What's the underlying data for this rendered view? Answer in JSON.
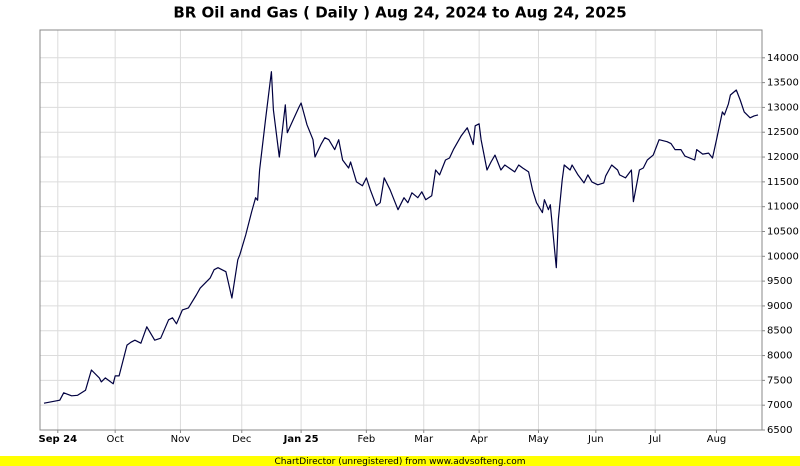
{
  "chart_data": {
    "type": "line",
    "title": "BR Oil and Gas ( Daily ) Aug 24, 2024 to Aug 24, 2025",
    "footer": "ChartDirector (unregistered) from www.advsofteng.com",
    "grid": true,
    "xlim": [
      "2024-08-24",
      "2025-08-24"
    ],
    "ylim": [
      6500,
      14560
    ],
    "yticks": [
      6500,
      7000,
      7500,
      8000,
      8500,
      9000,
      9500,
      10000,
      10500,
      11000,
      11500,
      12000,
      12500,
      13000,
      13500,
      14000
    ],
    "xticks": [
      {
        "value": "2024-09-02",
        "label": "Sep 24"
      },
      {
        "value": "2024-10-01",
        "label": "Oct"
      },
      {
        "value": "2024-11-03",
        "label": "Nov"
      },
      {
        "value": "2024-12-04",
        "label": "Dec"
      },
      {
        "value": "2025-01-03",
        "label": "Jan 25"
      },
      {
        "value": "2025-02-05",
        "label": "Feb"
      },
      {
        "value": "2025-03-06",
        "label": "Mar"
      },
      {
        "value": "2025-04-03",
        "label": "Apr"
      },
      {
        "value": "2025-05-03",
        "label": "May"
      },
      {
        "value": "2025-06-01",
        "label": "Jun"
      },
      {
        "value": "2025-07-01",
        "label": "Jul"
      },
      {
        "value": "2025-08-01",
        "label": "Aug"
      }
    ],
    "x": [
      "2024-08-26",
      "2024-09-03",
      "2024-09-05",
      "2024-09-09",
      "2024-09-12",
      "2024-09-16",
      "2024-09-19",
      "2024-09-23",
      "2024-09-24",
      "2024-09-26",
      "2024-09-30",
      "2024-10-01",
      "2024-10-03",
      "2024-10-07",
      "2024-10-09",
      "2024-10-11",
      "2024-10-14",
      "2024-10-17",
      "2024-10-21",
      "2024-10-24",
      "2024-10-28",
      "2024-10-30",
      "2024-11-01",
      "2024-11-04",
      "2024-11-07",
      "2024-11-11",
      "2024-11-13",
      "2024-11-18",
      "2024-11-20",
      "2024-11-22",
      "2024-11-26",
      "2024-11-29",
      "2024-12-02",
      "2024-12-03",
      "2024-12-06",
      "2024-12-09",
      "2024-12-11",
      "2024-12-12",
      "2024-12-13",
      "2024-12-16",
      "2024-12-19",
      "2024-12-20",
      "2024-12-23",
      "2024-12-26",
      "2024-12-27",
      "2024-12-30",
      "2025-01-02",
      "2025-01-03",
      "2025-01-06",
      "2025-01-09",
      "2025-01-10",
      "2025-01-13",
      "2025-01-15",
      "2025-01-17",
      "2025-01-20",
      "2025-01-22",
      "2025-01-24",
      "2025-01-27",
      "2025-01-28",
      "2025-01-31",
      "2025-02-03",
      "2025-02-05",
      "2025-02-07",
      "2025-02-10",
      "2025-02-12",
      "2025-02-14",
      "2025-02-17",
      "2025-02-21",
      "2025-02-24",
      "2025-02-26",
      "2025-02-28",
      "2025-03-03",
      "2025-03-05",
      "2025-03-07",
      "2025-03-10",
      "2025-03-12",
      "2025-03-14",
      "2025-03-17",
      "2025-03-19",
      "2025-03-21",
      "2025-03-25",
      "2025-03-28",
      "2025-03-31",
      "2025-04-01",
      "2025-04-03",
      "2025-04-04",
      "2025-04-07",
      "2025-04-09",
      "2025-04-11",
      "2025-04-14",
      "2025-04-16",
      "2025-04-21",
      "2025-04-23",
      "2025-04-25",
      "2025-04-28",
      "2025-04-30",
      "2025-05-02",
      "2025-05-05",
      "2025-05-06",
      "2025-05-08",
      "2025-05-09",
      "2025-05-12",
      "2025-05-13",
      "2025-05-15",
      "2025-05-16",
      "2025-05-19",
      "2025-05-20",
      "2025-05-23",
      "2025-05-26",
      "2025-05-28",
      "2025-05-30",
      "2025-06-02",
      "2025-06-05",
      "2025-06-06",
      "2025-06-09",
      "2025-06-12",
      "2025-06-13",
      "2025-06-16",
      "2025-06-19",
      "2025-06-20",
      "2025-06-23",
      "2025-06-25",
      "2025-06-27",
      "2025-06-30",
      "2025-07-03",
      "2025-07-07",
      "2025-07-09",
      "2025-07-11",
      "2025-07-14",
      "2025-07-16",
      "2025-07-21",
      "2025-07-22",
      "2025-07-25",
      "2025-07-28",
      "2025-07-30",
      "2025-08-01",
      "2025-08-04",
      "2025-08-05",
      "2025-08-07",
      "2025-08-08",
      "2025-08-11",
      "2025-08-13",
      "2025-08-15",
      "2025-08-18",
      "2025-08-20",
      "2025-08-22"
    ],
    "series": [
      {
        "name": "BR Oil and Gas",
        "color": "#000040",
        "values": [
          7040,
          7100,
          7250,
          7190,
          7200,
          7300,
          7710,
          7550,
          7470,
          7550,
          7430,
          7590,
          7590,
          8210,
          8270,
          8310,
          8250,
          8580,
          8310,
          8350,
          8720,
          8760,
          8640,
          8920,
          8960,
          9220,
          9360,
          9560,
          9730,
          9770,
          9690,
          9160,
          9930,
          10030,
          10430,
          10900,
          11180,
          11130,
          11740,
          12750,
          13720,
          12950,
          12000,
          13050,
          12490,
          12750,
          13010,
          13090,
          12650,
          12350,
          12000,
          12250,
          12390,
          12350,
          12150,
          12350,
          11940,
          11780,
          11900,
          11500,
          11420,
          11580,
          11340,
          11020,
          11080,
          11580,
          11340,
          10940,
          11180,
          11080,
          11280,
          11180,
          11300,
          11140,
          11220,
          11740,
          11640,
          11940,
          11980,
          12150,
          12430,
          12590,
          12250,
          12630,
          12670,
          12350,
          11740,
          11900,
          12040,
          11740,
          11840,
          11700,
          11840,
          11780,
          11700,
          11340,
          11080,
          10880,
          11140,
          10940,
          11040,
          9770,
          10730,
          11540,
          11840,
          11740,
          11840,
          11640,
          11480,
          11640,
          11500,
          11440,
          11480,
          11620,
          11840,
          11740,
          11640,
          11580,
          11740,
          11100,
          11740,
          11780,
          11940,
          12040,
          12350,
          12310,
          12270,
          12150,
          12150,
          12020,
          11940,
          12150,
          12060,
          12080,
          11980,
          12350,
          12910,
          12850,
          13070,
          13250,
          13350,
          13150,
          12910,
          12790,
          12830,
          12850
        ]
      }
    ]
  }
}
